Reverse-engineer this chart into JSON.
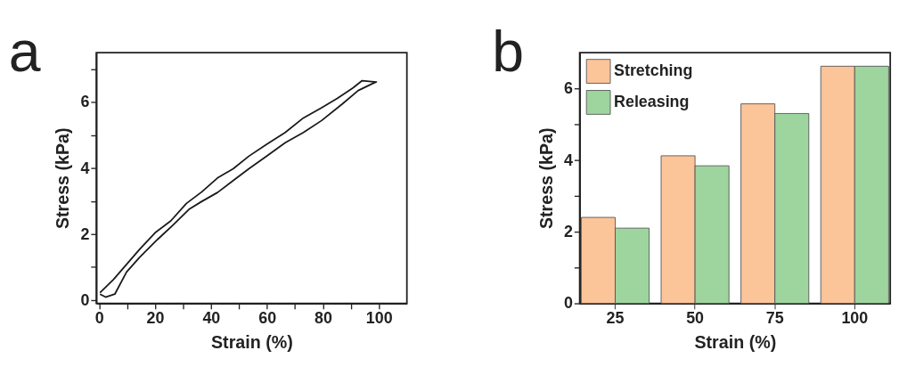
{
  "chart_data": [
    {
      "type": "line",
      "title": "a",
      "xlabel": "Strain (%)",
      "ylabel": "Stress (kPa)",
      "xlim": [
        -1,
        110
      ],
      "ylim": [
        -0.1,
        7.5
      ],
      "xticks": [
        0,
        {
          "value": 10,
          "label": null
        },
        20,
        {
          "value": 30,
          "label": null
        },
        40,
        {
          "value": 50,
          "label": null
        },
        60,
        {
          "value": 70,
          "label": null
        },
        80,
        {
          "value": 90,
          "label": null
        },
        100
      ],
      "yticks": [
        0,
        {
          "value": 1,
          "label": null
        },
        2,
        {
          "value": 3,
          "label": null
        },
        4,
        {
          "value": 5,
          "label": null
        },
        6,
        {
          "value": 7,
          "label": null
        }
      ],
      "grid": false,
      "legend": false,
      "marker": "none",
      "line_style": "solid",
      "series": [
        {
          "color": "#1a1a1a",
          "x": [
            0.3,
            5.1,
            14.4,
            20,
            25.6,
            31.2,
            36.7,
            42.3,
            47.9,
            53.5,
            60,
            66.5,
            73,
            79.5,
            85.1,
            90.7,
            94,
            99.1,
            97.7,
            92.6,
            87,
            79.5,
            73,
            66.5,
            60,
            53.5,
            47.9,
            42.3,
            36.7,
            32.1,
            26.5,
            20.9,
            14.4,
            9.8,
            5.6,
            2.3,
            0.3
          ],
          "values": [
            0.22,
            0.62,
            1.53,
            2.04,
            2.4,
            2.93,
            3.28,
            3.7,
            3.98,
            4.36,
            4.73,
            5.08,
            5.52,
            5.83,
            6.11,
            6.43,
            6.65,
            6.61,
            6.56,
            6.35,
            5.95,
            5.44,
            5.08,
            4.77,
            4.37,
            3.98,
            3.62,
            3.26,
            2.99,
            2.75,
            2.28,
            1.84,
            1.29,
            0.85,
            0.18,
            0.09,
            0.18
          ]
        }
      ]
    },
    {
      "type": "bar",
      "title": "b",
      "xlabel": "Strain (%)",
      "ylabel": "Stress (kPa)",
      "categories": [
        "25",
        "50",
        "75",
        "100"
      ],
      "ylim": [
        0,
        7
      ],
      "yticks": [
        0,
        {
          "value": 1,
          "label": null
        },
        2,
        {
          "value": 3,
          "label": null
        },
        4,
        {
          "value": 5,
          "label": null
        },
        6
      ],
      "grid": false,
      "legend": "top left",
      "series": [
        {
          "name": "Stretching",
          "color": "#fcc499",
          "values": [
            2.4,
            4.12,
            5.57,
            6.62
          ]
        },
        {
          "name": "Releasing",
          "color": "#9ed59e",
          "values": [
            2.1,
            3.84,
            5.3,
            6.62
          ]
        }
      ]
    }
  ]
}
